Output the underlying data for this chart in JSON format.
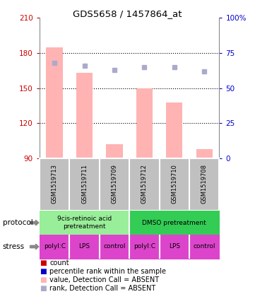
{
  "title": "GDS5658 / 1457864_at",
  "samples": [
    "GSM1519713",
    "GSM1519711",
    "GSM1519709",
    "GSM1519712",
    "GSM1519710",
    "GSM1519708"
  ],
  "bar_values": [
    185,
    163,
    102,
    150,
    138,
    98
  ],
  "bar_base": 90,
  "rank_values": [
    68,
    66,
    63,
    65,
    65,
    62
  ],
  "ylim_left": [
    90,
    210
  ],
  "ylim_right": [
    0,
    100
  ],
  "yticks_left": [
    90,
    120,
    150,
    180,
    210
  ],
  "yticks_right": [
    0,
    25,
    50,
    75,
    100
  ],
  "bar_color": "#ffb3b3",
  "rank_color": "#aaaacc",
  "bar_width": 0.55,
  "protocol_labels": [
    "9cis-retinoic acid\npretreatment",
    "DMSO pretreatment"
  ],
  "protocol_color1": "#99ee99",
  "protocol_color2": "#33cc55",
  "stress_labels": [
    "polyI:C",
    "LPS",
    "control",
    "polyI:C",
    "LPS",
    "control"
  ],
  "stress_color": "#dd44cc",
  "bg_color": "#c0c0c0",
  "left_axis_color": "#cc0000",
  "right_axis_color": "#0000cc",
  "legend_items": [
    {
      "label": "count",
      "color": "#cc0000"
    },
    {
      "label": "percentile rank within the sample",
      "color": "#0000cc"
    },
    {
      "label": "value, Detection Call = ABSENT",
      "color": "#ffb3b3"
    },
    {
      "label": "rank, Detection Call = ABSENT",
      "color": "#aaaacc"
    }
  ]
}
